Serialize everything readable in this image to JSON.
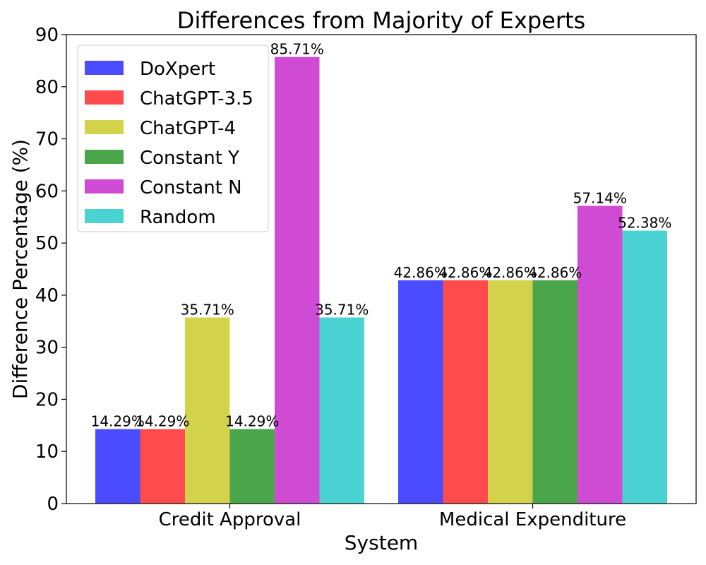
{
  "chart_data": {
    "type": "bar",
    "title": "Differences from Majority of Experts",
    "xlabel": "System",
    "ylabel": "Difference Percentage (%)",
    "categories": [
      "Credit Approval",
      "Medical Expenditure"
    ],
    "ylim": [
      0,
      90
    ],
    "yticks": [
      "0",
      "10",
      "20",
      "30",
      "40",
      "50",
      "60",
      "70",
      "80",
      "90"
    ],
    "grid": false,
    "legend_position": "top-left",
    "series": [
      {
        "name": "DoXpert",
        "color": "#4b4bff",
        "values": [
          14.29,
          42.86
        ],
        "labels": [
          "14.29%",
          "42.86%"
        ]
      },
      {
        "name": "ChatGPT-3.5",
        "color": "#ff4b4b",
        "values": [
          14.29,
          42.86
        ],
        "labels": [
          "14.29%",
          "42.86%"
        ]
      },
      {
        "name": "ChatGPT-4",
        "color": "#d3d34b",
        "values": [
          35.71,
          42.86
        ],
        "labels": [
          "35.71%",
          "42.86%"
        ]
      },
      {
        "name": "Constant Y",
        "color": "#4ba64b",
        "values": [
          14.29,
          42.86
        ],
        "labels": [
          "14.29%",
          "42.86%"
        ]
      },
      {
        "name": "Constant N",
        "color": "#d04bd3",
        "values": [
          85.71,
          57.14
        ],
        "labels": [
          "85.71%",
          "57.14%"
        ]
      },
      {
        "name": "Random",
        "color": "#4bd3d3",
        "values": [
          35.71,
          52.38
        ],
        "labels": [
          "35.71%",
          "52.38%"
        ]
      }
    ]
  }
}
